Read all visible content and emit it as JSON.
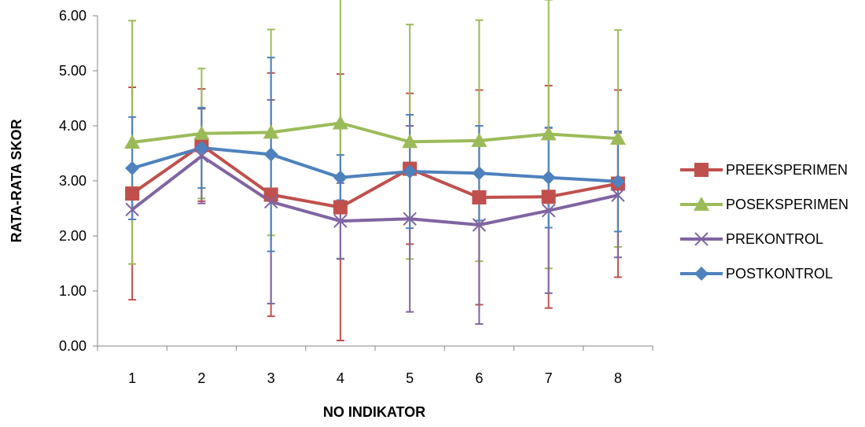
{
  "chart_data": {
    "type": "line",
    "title": "",
    "xlabel": "NO INDIKATOR",
    "ylabel": "RATA-RATA SKOR",
    "categories": [
      "1",
      "2",
      "3",
      "4",
      "5",
      "6",
      "7",
      "8"
    ],
    "ylim": [
      0,
      6
    ],
    "yticks": [
      "0.00",
      "1.00",
      "2.00",
      "3.00",
      "4.00",
      "5.00",
      "6.00"
    ],
    "grid": false,
    "legend_position": "right",
    "series": [
      {
        "name": "PREEKSPERIMEN",
        "color": "#c0504d",
        "marker": "square",
        "values": [
          2.77,
          3.65,
          2.75,
          2.52,
          3.22,
          2.7,
          2.71,
          2.95
        ],
        "error": [
          1.93,
          1.02,
          2.21,
          2.42,
          1.37,
          1.95,
          2.02,
          1.7
        ]
      },
      {
        "name": "POSEKSPERIMEN",
        "color": "#9bbb59",
        "marker": "triangle",
        "values": [
          3.7,
          3.86,
          3.88,
          4.05,
          3.71,
          3.73,
          3.85,
          3.77
        ],
        "error": [
          2.21,
          1.18,
          1.87,
          2.46,
          2.13,
          2.19,
          2.44,
          1.97
        ]
      },
      {
        "name": "PREKONTROL",
        "color": "#8064a2",
        "marker": "x",
        "values": [
          2.48,
          3.45,
          2.62,
          2.27,
          2.31,
          2.2,
          2.46,
          2.74
        ],
        "error": [
          0.18,
          0.86,
          1.85,
          0.69,
          1.69,
          1.8,
          1.5,
          1.13
        ]
      },
      {
        "name": "POSTKONTROL",
        "color": "#4f81bd",
        "marker": "diamond",
        "values": [
          3.23,
          3.6,
          3.48,
          3.06,
          3.17,
          3.14,
          3.06,
          2.99
        ],
        "error": [
          0.93,
          0.73,
          1.76,
          0.41,
          1.03,
          0.86,
          0.91,
          0.91
        ]
      }
    ]
  }
}
